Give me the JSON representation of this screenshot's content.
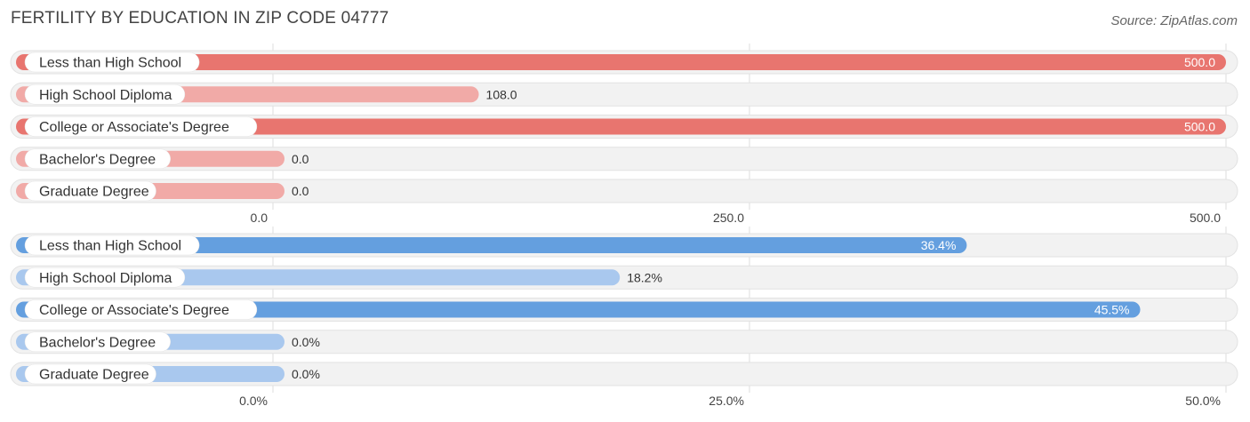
{
  "title": "FERTILITY BY EDUCATION IN ZIP CODE 04777",
  "source": "Source: ZipAtlas.com",
  "chart_data": [
    {
      "type": "bar",
      "orientation": "horizontal",
      "categories": [
        "Less than High School",
        "High School Diploma",
        "College or Associate's Degree",
        "Bachelor's Degree",
        "Graduate Degree"
      ],
      "values": [
        500.0,
        108.0,
        500.0,
        0.0,
        0.0
      ],
      "value_labels": [
        "500.0",
        "108.0",
        "500.0",
        "0.0",
        "0.0"
      ],
      "xlim": [
        0,
        500
      ],
      "ticks": [
        0,
        250,
        500
      ],
      "tick_labels": [
        "0.0",
        "250.0",
        "500.0"
      ],
      "colors": {
        "strong": "#e8756f",
        "light": "#f1aaa7"
      }
    },
    {
      "type": "bar",
      "orientation": "horizontal",
      "categories": [
        "Less than High School",
        "High School Diploma",
        "College or Associate's Degree",
        "Bachelor's Degree",
        "Graduate Degree"
      ],
      "values": [
        36.4,
        18.2,
        45.5,
        0.0,
        0.0
      ],
      "value_labels": [
        "36.4%",
        "18.2%",
        "45.5%",
        "0.0%",
        "0.0%"
      ],
      "xlim": [
        0,
        50
      ],
      "ticks": [
        0,
        25,
        50
      ],
      "tick_labels": [
        "0.0%",
        "25.0%",
        "50.0%"
      ],
      "colors": {
        "strong": "#649fdf",
        "light": "#a9c8ee"
      }
    }
  ]
}
